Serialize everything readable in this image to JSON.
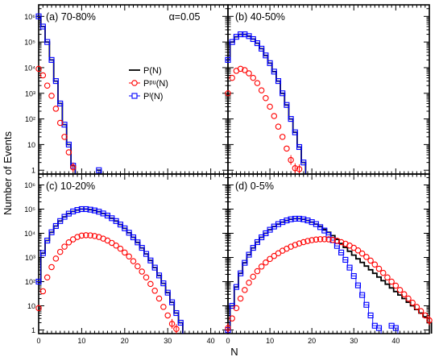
{
  "chart_data": {
    "type": "line",
    "ylabel": "Number of Events",
    "xlabel": "N",
    "x_ticks": [
      "0",
      "10",
      "20",
      "30",
      "40"
    ],
    "y_ticks": [
      "1",
      "10",
      "10²",
      "10³",
      "10⁴",
      "10⁵",
      "10⁶"
    ],
    "xlim": [
      0,
      48
    ],
    "ylim_log10": [
      -0.15,
      6.45
    ],
    "scale": "log-y",
    "grid": false,
    "alpha_label": "α=0.05",
    "legend": {
      "position": "upper-middle of panel (a)",
      "entries": [
        {
          "label": "P(N)",
          "color": "#000000",
          "style": "line"
        },
        {
          "label": "Pᵖᵘ(N)",
          "color": "#ff0000",
          "style": "circle"
        },
        {
          "label": "Pᴵ(N)",
          "color": "#0000ff",
          "style": "square"
        }
      ]
    },
    "panels": [
      {
        "id": "a",
        "label": "(a) 70-80%",
        "series": {
          "P": {
            "x": [
              0,
              1,
              2,
              3,
              4,
              5,
              6,
              7,
              8,
              9,
              14
            ],
            "y": [
              1000000,
              400000,
              100000,
              20000,
              3000,
              400,
              60,
              10,
              1.5,
              0,
              1
            ]
          },
          "Ppu": {
            "x": [
              0,
              1,
              2,
              3,
              4,
              5,
              6,
              7,
              8
            ],
            "y": [
              9000,
              5000,
              2000,
              800,
              250,
              70,
              20,
              5,
              1.3
            ]
          },
          "PI": {
            "x": [
              0,
              1,
              2,
              3,
              4,
              5,
              6,
              7,
              8,
              14
            ],
            "y": [
              1000000,
              400000,
              100000,
              20000,
              3000,
              400,
              60,
              10,
              1.5,
              1
            ]
          }
        }
      },
      {
        "id": "b",
        "label": "(b) 40-50%",
        "series": {
          "P": {
            "x": [
              0,
              1,
              2,
              3,
              4,
              5,
              6,
              7,
              8,
              9,
              10,
              11,
              12,
              13,
              14,
              15,
              16,
              17,
              18
            ],
            "y": [
              20000,
              100000,
              160000,
              200000,
              200000,
              170000,
              130000,
              90000,
              55000,
              30000,
              15000,
              7000,
              3000,
              1000,
              350,
              100,
              30,
              8,
              2
            ]
          },
          "Ppu": {
            "x": [
              0,
              1,
              2,
              3,
              4,
              5,
              6,
              7,
              8,
              9,
              10,
              11,
              12,
              13,
              14,
              15,
              16,
              17
            ],
            "y": [
              1000,
              4000,
              7500,
              9000,
              8000,
              6000,
              4000,
              2500,
              1300,
              650,
              300,
              130,
              50,
              20,
              7,
              2.5,
              1.2,
              1.1
            ]
          },
          "PI": {
            "x": [
              0,
              1,
              2,
              3,
              4,
              5,
              6,
              7,
              8,
              9,
              10,
              11,
              12,
              13,
              14,
              15,
              16,
              17,
              18
            ],
            "y": [
              20000,
              100000,
              160000,
              200000,
              200000,
              170000,
              130000,
              90000,
              55000,
              30000,
              15000,
              7000,
              3000,
              1000,
              350,
              100,
              30,
              8,
              2
            ]
          }
        }
      },
      {
        "id": "c",
        "label": "(c) 10-20%",
        "series": {
          "P": {
            "x": [
              0,
              1,
              2,
              3,
              4,
              5,
              6,
              7,
              8,
              9,
              10,
              11,
              12,
              13,
              14,
              15,
              16,
              17,
              18,
              19,
              20,
              21,
              22,
              23,
              24,
              25,
              26,
              27,
              28,
              29,
              30,
              31,
              32,
              33
            ],
            "y": [
              100,
              1500,
              5000,
              11000,
              20000,
              32000,
              48000,
              65000,
              80000,
              92000,
              100000,
              100000,
              95000,
              88000,
              78000,
              66000,
              54000,
              42000,
              32000,
              23000,
              16000,
              10500,
              6800,
              4200,
              2500,
              1400,
              750,
              380,
              180,
              85,
              35,
              14,
              5,
              2
            ]
          },
          "Ppu": {
            "x": [
              0,
              1,
              2,
              3,
              4,
              5,
              6,
              7,
              8,
              9,
              10,
              11,
              12,
              13,
              14,
              15,
              16,
              17,
              18,
              19,
              20,
              21,
              22,
              23,
              24,
              25,
              26,
              27,
              28,
              29,
              30,
              31,
              32
            ],
            "y": [
              8,
              40,
              150,
              400,
              900,
              1700,
              2800,
              4200,
              5600,
              7000,
              8000,
              8300,
              8200,
              7700,
              7000,
              6000,
              5000,
              4000,
              3100,
              2300,
              1600,
              1100,
              700,
              430,
              260,
              150,
              80,
              42,
              20,
              9,
              4,
              1.8,
              1.1
            ]
          },
          "PI": {
            "x": [
              0,
              1,
              2,
              3,
              4,
              5,
              6,
              7,
              8,
              9,
              10,
              11,
              12,
              13,
              14,
              15,
              16,
              17,
              18,
              19,
              20,
              21,
              22,
              23,
              24,
              25,
              26,
              27,
              28,
              29,
              30,
              31,
              32,
              33
            ],
            "y": [
              100,
              1500,
              5000,
              11000,
              20000,
              32000,
              48000,
              65000,
              80000,
              92000,
              100000,
              100000,
              95000,
              88000,
              78000,
              66000,
              54000,
              42000,
              32000,
              23000,
              16000,
              10500,
              6800,
              4200,
              2500,
              1400,
              750,
              380,
              180,
              85,
              35,
              14,
              5,
              2
            ]
          }
        }
      },
      {
        "id": "d",
        "label": "(d) 0-5%",
        "series": {
          "P": {
            "x": [
              0,
              1,
              2,
              3,
              4,
              5,
              6,
              7,
              8,
              9,
              10,
              11,
              12,
              13,
              14,
              15,
              16,
              17,
              18,
              19,
              20,
              21,
              22,
              23,
              24,
              25,
              26,
              27,
              28,
              29,
              30,
              31,
              32,
              33,
              34,
              35,
              36,
              37,
              38,
              39,
              40,
              41,
              42,
              43,
              44,
              45,
              46,
              47,
              48
            ],
            "y": [
              1,
              10,
              60,
              220,
              600,
              1300,
              2500,
              4300,
              6800,
              10000,
              14000,
              19000,
              24000,
              29000,
              34000,
              38000,
              40000,
              40000,
              38000,
              34000,
              29000,
              24000,
              19000,
              14500,
              11000,
              8000,
              5600,
              3800,
              2600,
              1800,
              1250,
              880,
              620,
              440,
              310,
              220,
              155,
              110,
              78,
              55,
              39,
              28,
              20,
              14,
              10,
              7,
              5,
              3.5,
              2
            ]
          },
          "Ppu": {
            "x": [
              0,
              1,
              2,
              3,
              4,
              5,
              6,
              7,
              8,
              9,
              10,
              11,
              12,
              13,
              14,
              15,
              16,
              17,
              18,
              19,
              20,
              21,
              22,
              23,
              24,
              25,
              26,
              27,
              28,
              29,
              30,
              31,
              32,
              33,
              34,
              35,
              36,
              37,
              38,
              39,
              40,
              41,
              42,
              43,
              44,
              45,
              46,
              47,
              48
            ],
            "y": [
              1.2,
              3,
              8,
              20,
              45,
              90,
              160,
              270,
              420,
              620,
              870,
              1150,
              1500,
              1900,
              2300,
              2800,
              3300,
              3800,
              4300,
              4800,
              5200,
              5500,
              5700,
              5700,
              5600,
              5300,
              4900,
              4300,
              3700,
              3100,
              2500,
              1950,
              1450,
              1050,
              740,
              510,
              340,
              230,
              150,
              100,
              68,
              45,
              30,
              20,
              13.5,
              9,
              6,
              4,
              2.5
            ]
          },
          "PI": {
            "x": [
              0,
              1,
              2,
              3,
              4,
              5,
              6,
              7,
              8,
              9,
              10,
              11,
              12,
              13,
              14,
              15,
              16,
              17,
              18,
              19,
              20,
              21,
              22,
              23,
              24,
              25,
              26,
              27,
              28,
              29,
              30,
              31,
              32,
              33,
              34,
              35,
              36,
              37,
              38,
              39,
              40
            ],
            "y": [
              1,
              10,
              60,
              220,
              600,
              1300,
              2500,
              4300,
              6800,
              10000,
              14000,
              19000,
              24000,
              29000,
              34000,
              38000,
              40000,
              40000,
              38000,
              34000,
              29000,
              24000,
              18000,
              13000,
              8500,
              5200,
              3000,
              1600,
              800,
              380,
              170,
              70,
              28,
              11,
              4,
              1.5,
              1.2,
              0,
              0,
              1.5,
              1.2
            ]
          }
        }
      }
    ]
  }
}
